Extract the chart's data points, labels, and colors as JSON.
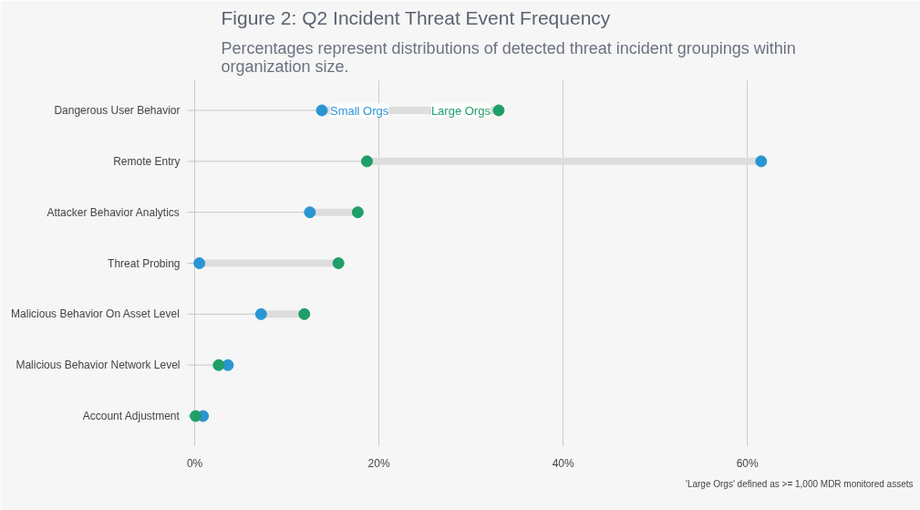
{
  "chart_data": {
    "type": "scatter",
    "orientation": "horizontal",
    "title": "Figure 2: Q2 Incident Threat Event Frequency",
    "subtitle": "Percentages represent distributions of detected threat incident groupings within organization size.",
    "categories": [
      "Dangerous User Behavior",
      "Remote Entry",
      "Attacker Behavior Analytics",
      "Threat Probing",
      "Malicious Behavior On Asset Level",
      "Malicious Behavior Network Level",
      "Account Adjustment"
    ],
    "series": [
      {
        "name": "Small Orgs",
        "color": "#2a95d3",
        "values": [
          13.8,
          61.5,
          12.5,
          0.5,
          7.2,
          3.6,
          0.9
        ]
      },
      {
        "name": "Large Orgs",
        "color": "#1f9e68",
        "values": [
          33.0,
          18.7,
          17.7,
          15.6,
          11.9,
          2.6,
          0.1
        ]
      }
    ],
    "xlim": [
      -0.8,
      78
    ],
    "xticks": [
      {
        "value": 0,
        "label": "0%"
      },
      {
        "value": 20,
        "label": "20%"
      },
      {
        "value": 40,
        "label": "40%"
      },
      {
        "value": 60,
        "label": "60%"
      }
    ],
    "grid": "x",
    "legend": false,
    "marker": "circle",
    "annotations": [
      "'Large Orgs' defined as >= 1,000 MDR monitored assets"
    ]
  }
}
